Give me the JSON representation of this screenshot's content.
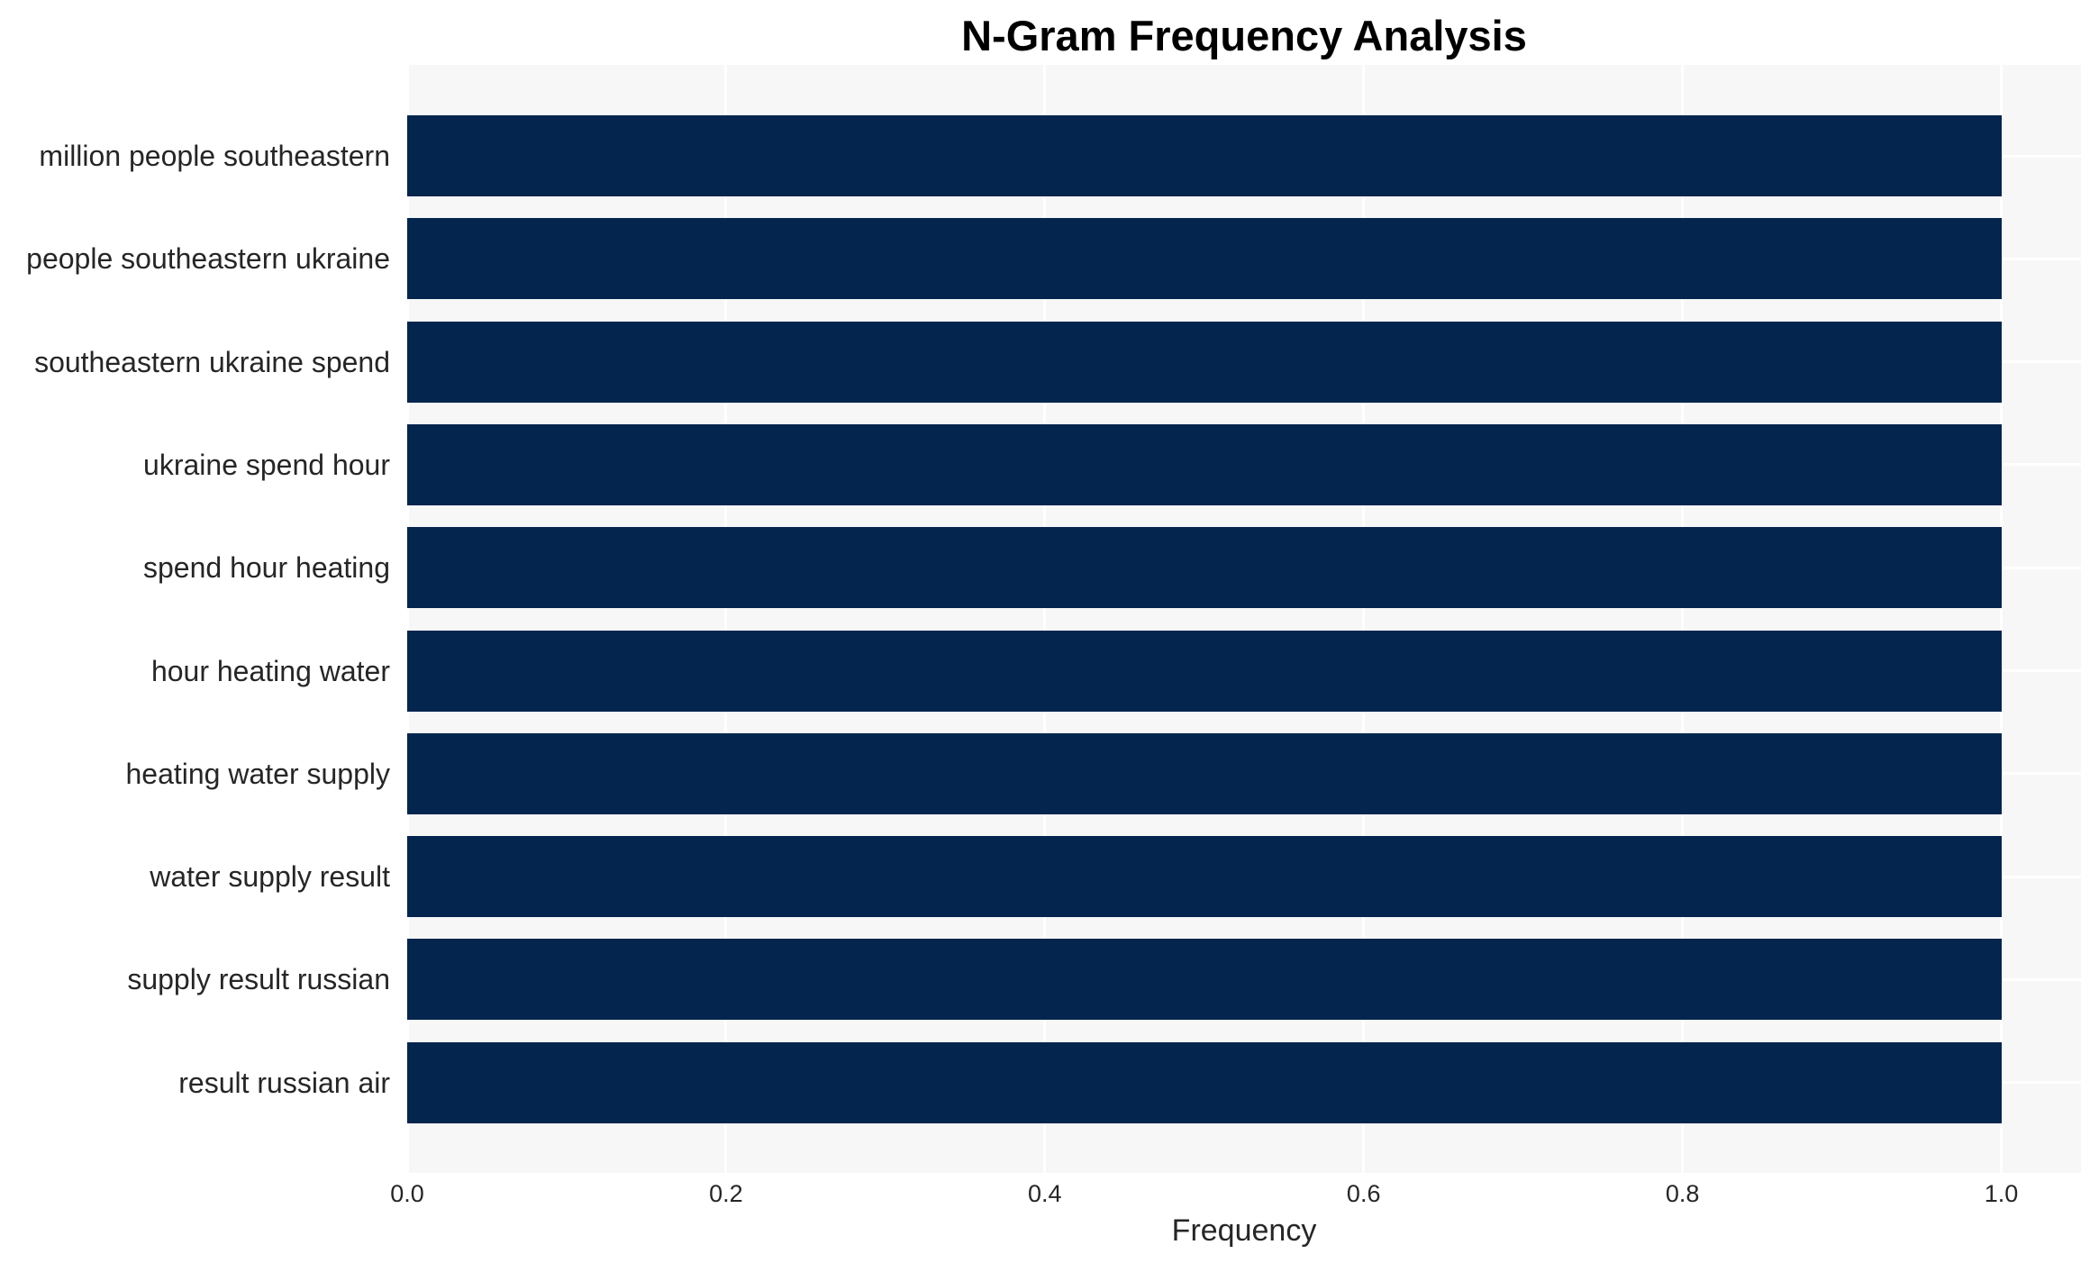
{
  "chart_data": {
    "type": "bar",
    "orientation": "horizontal",
    "title": "N-Gram Frequency Analysis",
    "xlabel": "Frequency",
    "ylabel": "",
    "categories": [
      "million people southeastern",
      "people southeastern ukraine",
      "southeastern ukraine spend",
      "ukraine spend hour",
      "spend hour heating",
      "hour heating water",
      "heating water supply",
      "water supply result",
      "supply result russian",
      "result russian air"
    ],
    "values": [
      1.0,
      1.0,
      1.0,
      1.0,
      1.0,
      1.0,
      1.0,
      1.0,
      1.0,
      1.0
    ],
    "xlim": [
      0,
      1.05
    ],
    "xtick_labels": [
      "0.0",
      "0.2",
      "0.4",
      "0.6",
      "0.8",
      "1.0"
    ],
    "xtick_values": [
      0.0,
      0.2,
      0.4,
      0.6,
      0.8,
      1.0
    ],
    "grid": true,
    "legend_position": "none",
    "colors": {
      "bar": "#03254e",
      "plot_bg": "#f7f7f7",
      "grid": "#ffffff",
      "tick_text": "#262626",
      "title_text": "#000000"
    }
  }
}
